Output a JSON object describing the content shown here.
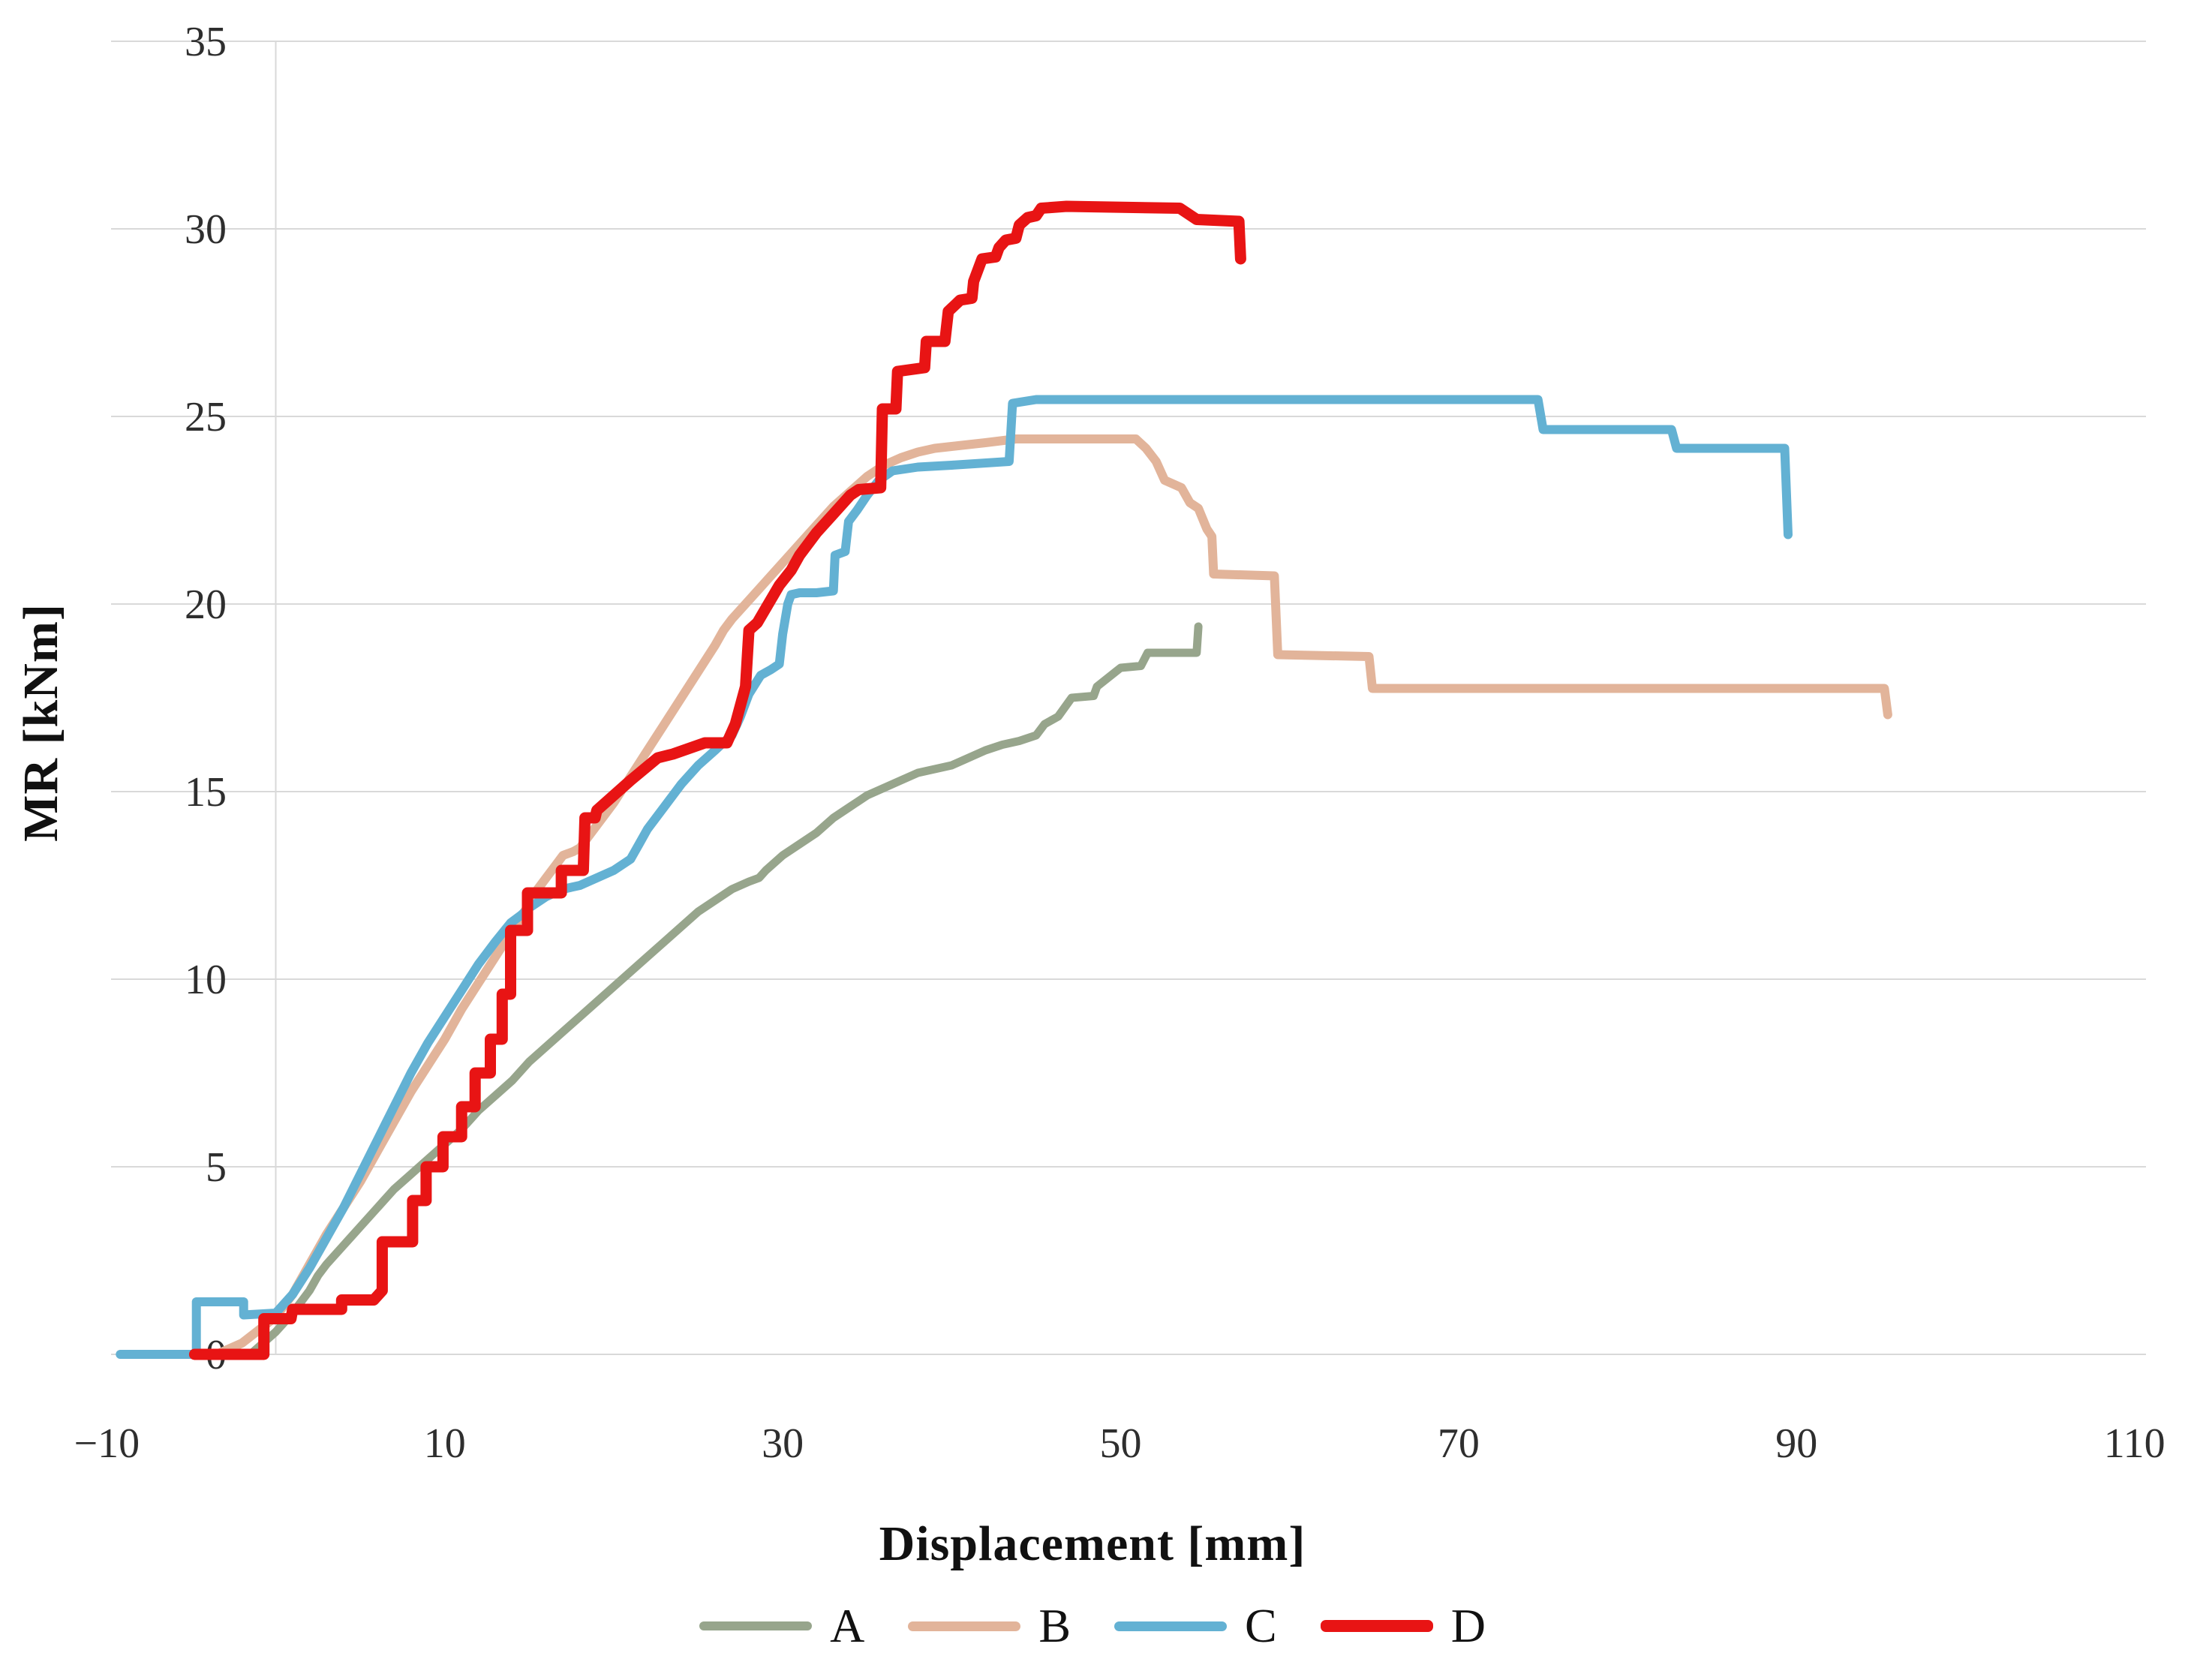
{
  "chart_data": {
    "type": "line",
    "title": "",
    "xlabel": "Displacement [mm]",
    "ylabel": "MR [kNm]",
    "xlim": [
      -10,
      110
    ],
    "ylim": [
      0,
      35
    ],
    "x_ticks": [
      -10,
      10,
      30,
      50,
      70,
      90,
      110
    ],
    "y_ticks": [
      0,
      5,
      10,
      15,
      20,
      25,
      30,
      35
    ],
    "grid": "horizontal-only",
    "legend_position": "bottom-center",
    "axis_line_color": "#d9d9d9",
    "tick_text_color": "#2e2e2e",
    "series": [
      {
        "name": "A",
        "color": "#97a58c",
        "line_width": 11,
        "points": [
          [
            -1.5,
            0
          ],
          [
            0,
            0.6
          ],
          [
            1,
            1.1
          ],
          [
            2,
            1.7
          ],
          [
            2.5,
            2.1
          ],
          [
            3,
            2.4
          ],
          [
            4,
            2.9
          ],
          [
            5,
            3.4
          ],
          [
            6,
            3.9
          ],
          [
            7,
            4.4
          ],
          [
            8,
            4.8
          ],
          [
            9,
            5.2
          ],
          [
            10,
            5.6
          ],
          [
            11,
            6.0
          ],
          [
            12,
            6.5
          ],
          [
            13,
            6.9
          ],
          [
            14,
            7.3
          ],
          [
            15,
            7.8
          ],
          [
            16,
            8.2
          ],
          [
            17,
            8.6
          ],
          [
            18,
            9.0
          ],
          [
            19,
            9.4
          ],
          [
            20,
            9.8
          ],
          [
            21,
            10.2
          ],
          [
            22,
            10.6
          ],
          [
            23,
            11.0
          ],
          [
            24,
            11.4
          ],
          [
            25,
            11.8
          ],
          [
            26,
            12.1
          ],
          [
            27,
            12.4
          ],
          [
            28,
            12.6
          ],
          [
            28.6,
            12.7
          ],
          [
            29,
            12.9
          ],
          [
            30,
            13.3
          ],
          [
            31,
            13.6
          ],
          [
            32,
            13.9
          ],
          [
            33,
            14.3
          ],
          [
            34,
            14.6
          ],
          [
            35,
            14.9
          ],
          [
            36,
            15.1
          ],
          [
            37,
            15.3
          ],
          [
            38,
            15.5
          ],
          [
            39,
            15.6
          ],
          [
            40,
            15.7
          ],
          [
            41,
            15.9
          ],
          [
            42,
            16.1
          ],
          [
            43,
            16.25
          ],
          [
            44,
            16.35
          ],
          [
            45,
            16.5
          ],
          [
            45.5,
            16.8
          ],
          [
            46.3,
            17.0
          ],
          [
            47.1,
            17.5
          ],
          [
            48.4,
            17.55
          ],
          [
            48.6,
            17.8
          ],
          [
            50,
            18.3
          ],
          [
            51.2,
            18.35
          ],
          [
            51.6,
            18.7
          ],
          [
            54.5,
            18.7
          ],
          [
            54.6,
            19.4
          ]
        ]
      },
      {
        "name": "B",
        "color": "#e2b49a",
        "line_width": 12,
        "points": [
          [
            -3.5,
            0
          ],
          [
            -2,
            0.3
          ],
          [
            0,
            1.0
          ],
          [
            1,
            1.6
          ],
          [
            2,
            2.4
          ],
          [
            3,
            3.2
          ],
          [
            4,
            3.9
          ],
          [
            5,
            4.6
          ],
          [
            6,
            5.4
          ],
          [
            7,
            6.2
          ],
          [
            8,
            7.0
          ],
          [
            9,
            7.7
          ],
          [
            10,
            8.4
          ],
          [
            11,
            9.2
          ],
          [
            12,
            9.9
          ],
          [
            13,
            10.6
          ],
          [
            14,
            11.3
          ],
          [
            15,
            12.0
          ],
          [
            15.5,
            12.4
          ],
          [
            16,
            12.7
          ],
          [
            16.5,
            13.0
          ],
          [
            17,
            13.3
          ],
          [
            17.6,
            13.4
          ],
          [
            18,
            13.5
          ],
          [
            19,
            14.1
          ],
          [
            20,
            14.7
          ],
          [
            21,
            15.4
          ],
          [
            22,
            16.1
          ],
          [
            23,
            16.8
          ],
          [
            24,
            17.5
          ],
          [
            25,
            18.2
          ],
          [
            26,
            18.9
          ],
          [
            26.5,
            19.3
          ],
          [
            27,
            19.6
          ],
          [
            28,
            20.1
          ],
          [
            29,
            20.6
          ],
          [
            30,
            21.1
          ],
          [
            31,
            21.6
          ],
          [
            32,
            22.1
          ],
          [
            33,
            22.6
          ],
          [
            34,
            23.0
          ],
          [
            35,
            23.4
          ],
          [
            36,
            23.7
          ],
          [
            37,
            23.9
          ],
          [
            38,
            24.05
          ],
          [
            39,
            24.15
          ],
          [
            40,
            24.2
          ],
          [
            41,
            24.25
          ],
          [
            42,
            24.3
          ],
          [
            43.8,
            24.4
          ],
          [
            50.9,
            24.4
          ],
          [
            51.5,
            24.15
          ],
          [
            52.1,
            23.8
          ],
          [
            52.6,
            23.3
          ],
          [
            53.6,
            23.1
          ],
          [
            54.1,
            22.7
          ],
          [
            54.6,
            22.55
          ],
          [
            55.1,
            22.0
          ],
          [
            55.4,
            21.8
          ],
          [
            55.5,
            20.8
          ],
          [
            59.1,
            20.75
          ],
          [
            59.3,
            18.65
          ],
          [
            64.7,
            18.6
          ],
          [
            64.9,
            17.75
          ],
          [
            95.2,
            17.75
          ],
          [
            95.4,
            17.05
          ]
        ]
      },
      {
        "name": "C",
        "color": "#63b1d3",
        "line_width": 12,
        "points": [
          [
            -9.2,
            0
          ],
          [
            -4.7,
            0
          ],
          [
            -4.7,
            1.4
          ],
          [
            -1.9,
            1.4
          ],
          [
            -1.9,
            1.05
          ],
          [
            0,
            1.1
          ],
          [
            1,
            1.6
          ],
          [
            2,
            2.3
          ],
          [
            3,
            3.1
          ],
          [
            4,
            3.9
          ],
          [
            5,
            4.8
          ],
          [
            6,
            5.7
          ],
          [
            7,
            6.6
          ],
          [
            8,
            7.5
          ],
          [
            9,
            8.3
          ],
          [
            10,
            9.0
          ],
          [
            11,
            9.7
          ],
          [
            12,
            10.4
          ],
          [
            13,
            11.0
          ],
          [
            13.9,
            11.5
          ],
          [
            14.5,
            11.7
          ],
          [
            15,
            11.9
          ],
          [
            16,
            12.2
          ],
          [
            17,
            12.4
          ],
          [
            18,
            12.5
          ],
          [
            19,
            12.7
          ],
          [
            20,
            12.9
          ],
          [
            21,
            13.2
          ],
          [
            21.5,
            13.6
          ],
          [
            22,
            14.0
          ],
          [
            23,
            14.6
          ],
          [
            24,
            15.2
          ],
          [
            25,
            15.7
          ],
          [
            26,
            16.1
          ],
          [
            26.6,
            16.35
          ],
          [
            27,
            16.5
          ],
          [
            27.5,
            17.0
          ],
          [
            28,
            17.6
          ],
          [
            28.7,
            18.1
          ],
          [
            29.3,
            18.25
          ],
          [
            29.8,
            18.4
          ],
          [
            30,
            19.2
          ],
          [
            30.3,
            20.0
          ],
          [
            30.5,
            20.25
          ],
          [
            31,
            20.3
          ],
          [
            32,
            20.3
          ],
          [
            33,
            20.35
          ],
          [
            33.1,
            21.3
          ],
          [
            33.7,
            21.4
          ],
          [
            33.9,
            22.2
          ],
          [
            34.4,
            22.5
          ],
          [
            35,
            22.9
          ],
          [
            35.7,
            23.3
          ],
          [
            36.5,
            23.55
          ],
          [
            38,
            23.65
          ],
          [
            40,
            23.7
          ],
          [
            43.4,
            23.8
          ],
          [
            43.6,
            25.35
          ],
          [
            45,
            25.45
          ],
          [
            74.7,
            25.45
          ],
          [
            75,
            24.65
          ],
          [
            82.6,
            24.65
          ],
          [
            82.9,
            24.15
          ],
          [
            89.3,
            24.15
          ],
          [
            89.5,
            21.85
          ]
        ]
      },
      {
        "name": "D",
        "color": "#e81414",
        "line_width": 15,
        "points": [
          [
            -4.8,
            0
          ],
          [
            -0.7,
            0
          ],
          [
            -0.7,
            0.95
          ],
          [
            0.9,
            0.95
          ],
          [
            1,
            1.2
          ],
          [
            3.9,
            1.2
          ],
          [
            3.9,
            1.45
          ],
          [
            5.8,
            1.45
          ],
          [
            6.3,
            1.7
          ],
          [
            6.3,
            3.0
          ],
          [
            8.1,
            3.0
          ],
          [
            8.1,
            4.1
          ],
          [
            8.9,
            4.1
          ],
          [
            8.9,
            5.0
          ],
          [
            9.9,
            5.0
          ],
          [
            9.9,
            5.8
          ],
          [
            11,
            5.8
          ],
          [
            11,
            6.6
          ],
          [
            11.8,
            6.6
          ],
          [
            11.8,
            7.5
          ],
          [
            12.7,
            7.5
          ],
          [
            12.7,
            8.4
          ],
          [
            13.4,
            8.4
          ],
          [
            13.4,
            9.6
          ],
          [
            13.9,
            9.6
          ],
          [
            13.9,
            11.3
          ],
          [
            14.9,
            11.3
          ],
          [
            14.9,
            12.3
          ],
          [
            16.9,
            12.3
          ],
          [
            16.9,
            12.9
          ],
          [
            18.2,
            12.9
          ],
          [
            18.3,
            14.3
          ],
          [
            18.9,
            14.3
          ],
          [
            19,
            14.5
          ],
          [
            20,
            14.9
          ],
          [
            21,
            15.3
          ],
          [
            22.6,
            15.9
          ],
          [
            23.5,
            16.0
          ],
          [
            25.4,
            16.3
          ],
          [
            26.7,
            16.3
          ],
          [
            27.2,
            16.8
          ],
          [
            27.8,
            17.8
          ],
          [
            28,
            19.3
          ],
          [
            28.5,
            19.5
          ],
          [
            29.8,
            20.5
          ],
          [
            30.5,
            20.9
          ],
          [
            31,
            21.3
          ],
          [
            32,
            21.9
          ],
          [
            33,
            22.4
          ],
          [
            34,
            22.9
          ],
          [
            34.5,
            23.05
          ],
          [
            35.8,
            23.1
          ],
          [
            35.9,
            25.2
          ],
          [
            36.7,
            25.2
          ],
          [
            36.8,
            26.2
          ],
          [
            38.4,
            26.3
          ],
          [
            38.5,
            27.0
          ],
          [
            39.6,
            27.0
          ],
          [
            39.8,
            27.8
          ],
          [
            40.5,
            28.1
          ],
          [
            41.2,
            28.15
          ],
          [
            41.3,
            28.6
          ],
          [
            41.8,
            29.2
          ],
          [
            42.6,
            29.25
          ],
          [
            42.8,
            29.5
          ],
          [
            43.2,
            29.7
          ],
          [
            43.8,
            29.75
          ],
          [
            44,
            30.1
          ],
          [
            44.5,
            30.3
          ],
          [
            45,
            30.35
          ],
          [
            45.3,
            30.55
          ],
          [
            46.8,
            30.6
          ],
          [
            53.5,
            30.55
          ],
          [
            54.5,
            30.25
          ],
          [
            57,
            30.2
          ],
          [
            57.1,
            29.2
          ]
        ]
      }
    ]
  },
  "axis_titles": {
    "x": "Displacement [mm]",
    "y": "MR [kNm]"
  }
}
